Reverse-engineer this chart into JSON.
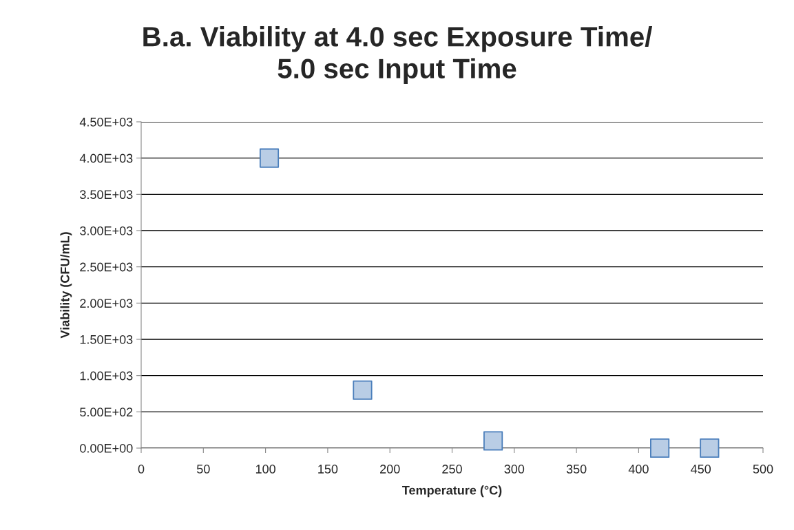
{
  "chart_data": {
    "type": "scatter",
    "title": "B.a. Viability at 4.0 sec Exposure Time/\n5.0 sec Input Time",
    "xlabel": "Temperature (°C)",
    "ylabel": "Viability (CFU/mL)",
    "x": [
      103,
      178,
      283,
      417,
      457
    ],
    "series": [
      {
        "color": "#b9cde5",
        "values": [
          4000,
          800,
          100,
          0,
          0
        ]
      }
    ],
    "marker": "square",
    "grid": "y",
    "legend": false,
    "xlim": [
      0,
      500
    ],
    "xticks": [
      0,
      50,
      100,
      150,
      200,
      250,
      300,
      350,
      400,
      450,
      500
    ],
    "ylim": [
      0,
      4500
    ],
    "yticks": [
      {
        "value": 0,
        "label": "0.00E+00"
      },
      {
        "value": 500,
        "label": "5.00E+02"
      },
      {
        "value": 1000,
        "label": "1.00E+03"
      },
      {
        "value": 1500,
        "label": "1.50E+03"
      },
      {
        "value": 2000,
        "label": "2.00E+03"
      },
      {
        "value": 2500,
        "label": "2.50E+03"
      },
      {
        "value": 3000,
        "label": "3.00E+03"
      },
      {
        "value": 3500,
        "label": "3.50E+03"
      },
      {
        "value": 4000,
        "label": "4.00E+03"
      },
      {
        "value": 4500,
        "label": "4.50E+03"
      }
    ]
  }
}
